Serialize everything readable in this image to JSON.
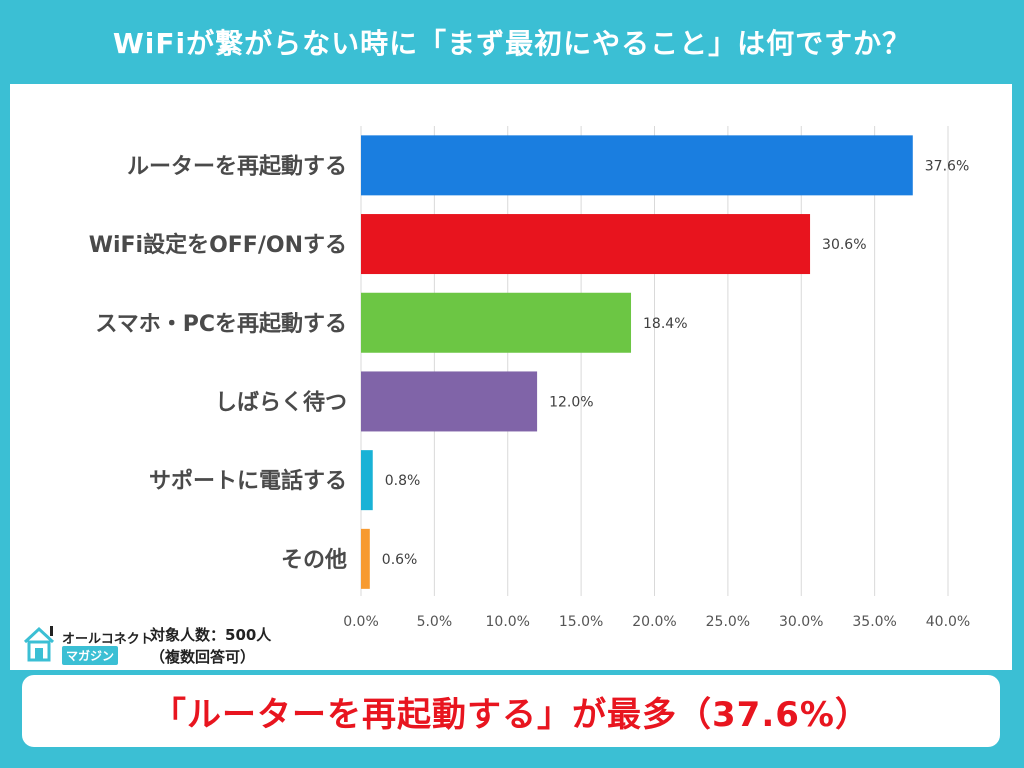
{
  "header": {
    "title": "WiFiが繋がらない時に「まず最初にやること」は何ですか？"
  },
  "chart_data": {
    "type": "bar",
    "orientation": "horizontal",
    "categories": [
      "ルーターを再起動する",
      "WiFi設定をOFF/ONする",
      "スマホ・PCを再起動する",
      "しばらく待つ",
      "サポートに電話する",
      "その他"
    ],
    "values": [
      37.6,
      30.6,
      18.4,
      12.0,
      0.8,
      0.6
    ],
    "value_labels": [
      "37.6%",
      "30.6%",
      "18.4%",
      "12.0%",
      "0.8%",
      "0.6%"
    ],
    "colors": [
      "#1a7ee0",
      "#e8141e",
      "#6cc644",
      "#8064a8",
      "#19b2d6",
      "#f79a30"
    ],
    "xlim": [
      0,
      40
    ],
    "xticks": [
      0,
      5,
      10,
      15,
      20,
      25,
      30,
      35,
      40
    ],
    "xtick_labels": [
      "0.0%",
      "5.0%",
      "10.0%",
      "15.0%",
      "20.0%",
      "25.0%",
      "30.0%",
      "35.0%",
      "40.0%"
    ],
    "grid": true
  },
  "footer": {
    "brand_top": "オールコネクト",
    "brand_bottom": "マガジン",
    "sample_size": "対象人数：500人",
    "note": "（複数回答可）",
    "summary": "「ルーターを再起動する」が最多（37.6%）"
  },
  "colors": {
    "background": "#3bbfd4",
    "panel": "#ffffff",
    "summary_text": "#e8151f"
  }
}
